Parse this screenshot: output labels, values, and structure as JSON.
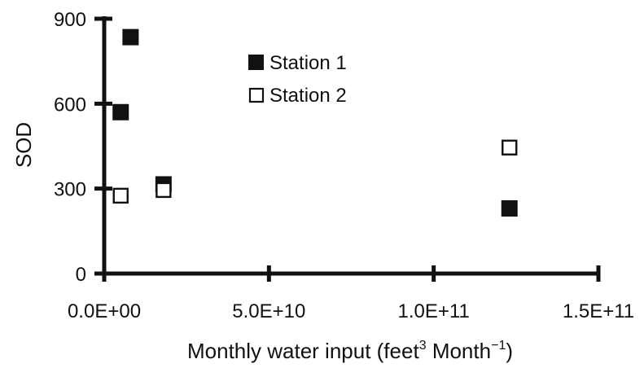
{
  "chart_data": {
    "type": "scatter",
    "title": "",
    "xlabel": {
      "prefix": "Monthly water input (feet",
      "sup1": "3",
      "middle": " Month",
      "sup2": "−1",
      "suffix": ")"
    },
    "ylabel": "SOD",
    "xlim": [
      0,
      150000000000
    ],
    "ylim": [
      0,
      900
    ],
    "x_ticks": [
      0,
      50000000000,
      100000000000,
      150000000000
    ],
    "x_tick_labels": [
      "0.0E+00",
      "5.0E+10",
      "1.0E+11",
      "1.5E+11"
    ],
    "y_ticks": [
      0,
      300,
      600,
      900
    ],
    "y_tick_labels": [
      "0",
      "300",
      "600",
      "900"
    ],
    "grid": false,
    "legend": "top-center",
    "series": [
      {
        "name": "Station 1",
        "marker": "filled-square",
        "color": "#111111",
        "points": [
          {
            "x": 8000000000,
            "y": 835
          },
          {
            "x": 5000000000,
            "y": 570
          },
          {
            "x": 18000000000,
            "y": 315
          },
          {
            "x": 123000000000,
            "y": 230
          }
        ]
      },
      {
        "name": "Station 2",
        "marker": "open-square",
        "color": "#111111",
        "points": [
          {
            "x": 5000000000,
            "y": 275
          },
          {
            "x": 18000000000,
            "y": 295
          },
          {
            "x": 123000000000,
            "y": 445
          }
        ]
      }
    ]
  }
}
